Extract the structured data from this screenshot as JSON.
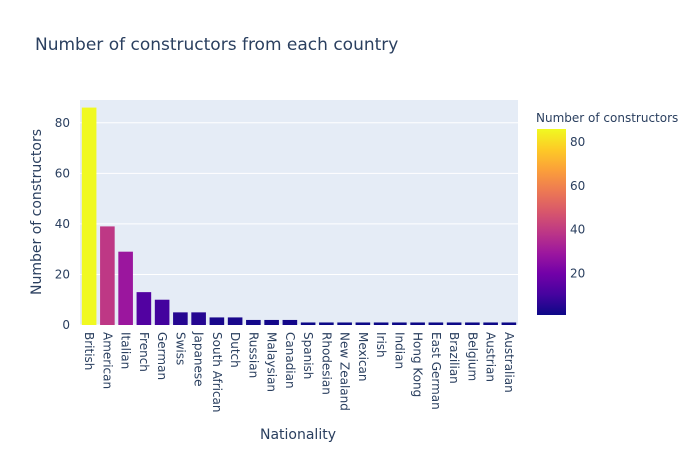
{
  "chart_data": {
    "type": "bar",
    "title": "Number of constructors from each country",
    "xlabel": "Nationality",
    "ylabel": "Number of constructors",
    "categories": [
      "British",
      "American",
      "Italian",
      "French",
      "German",
      "Swiss",
      "Japanese",
      "South African",
      "Dutch",
      "Russian",
      "Malaysian",
      "Canadian",
      "Spanish",
      "Rhodesian",
      "New Zealand",
      "Mexican",
      "Irish",
      "Indian",
      "Hong Kong",
      "East German",
      "Brazilian",
      "Belgium",
      "Austrian",
      "Australian"
    ],
    "values": [
      86,
      39,
      29,
      13,
      10,
      5,
      5,
      3,
      3,
      2,
      2,
      2,
      1,
      1,
      1,
      1,
      1,
      1,
      1,
      1,
      1,
      1,
      1,
      1
    ],
    "ylim": [
      0,
      89
    ],
    "yticks": [
      0,
      20,
      40,
      60,
      80
    ],
    "grid": true,
    "colorbar": {
      "title": "Number of constructors",
      "range": [
        1,
        86
      ],
      "ticks": [
        20,
        40,
        60,
        80
      ],
      "colorscale": [
        "#0d0887",
        "#46039f",
        "#7201a8",
        "#9c179e",
        "#bd3786",
        "#d8576b",
        "#ed7953",
        "#fb9f3a",
        "#fdca26",
        "#f0f921"
      ]
    },
    "colors": {
      "plot_bg": "#e5ecf6",
      "grid": "#ffffff",
      "text": "#2a3f5f"
    }
  }
}
